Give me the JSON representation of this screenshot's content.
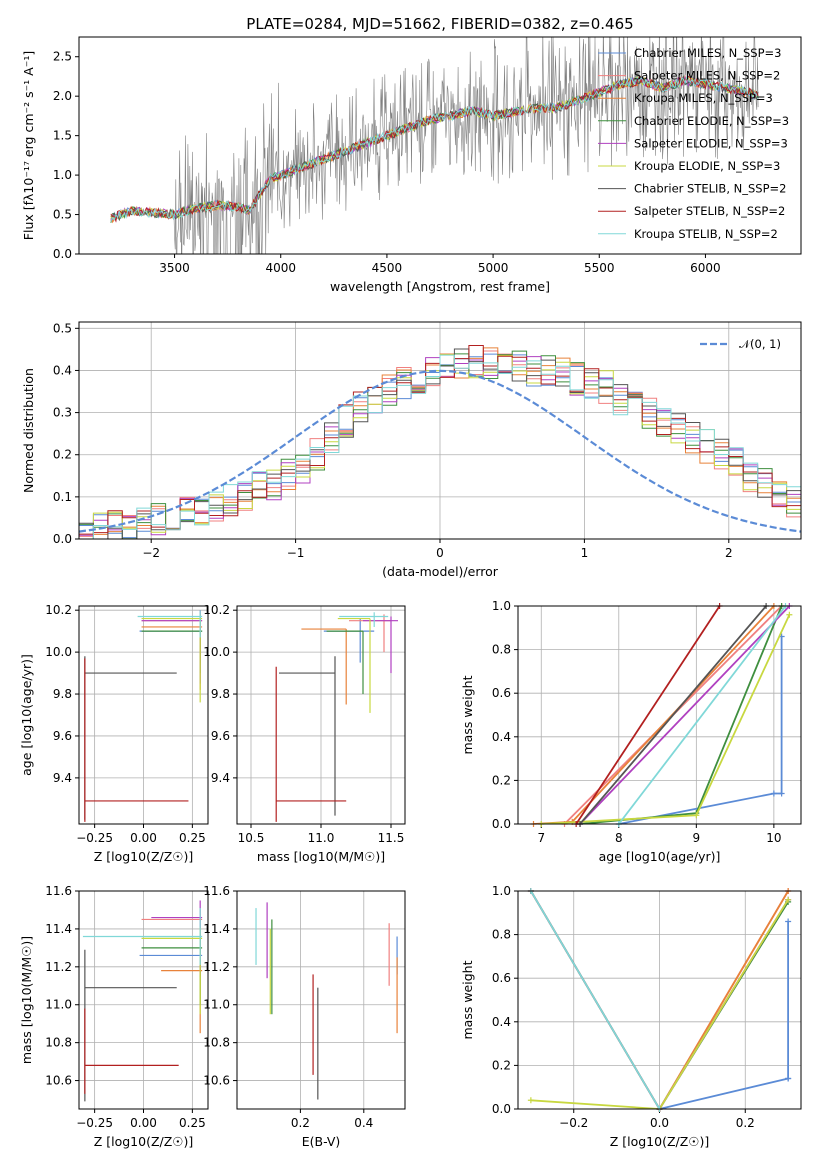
{
  "colors": {
    "chabrier_miles": "#5b8bd6",
    "salpeter_miles": "#f08080",
    "kroupa_miles": "#e8823a",
    "chabrier_elodie": "#3f8f3f",
    "salpeter_elodie": "#b040c0",
    "kroupa_elodie": "#c8d840",
    "chabrier_stelib": "#555555",
    "salpeter_stelib": "#b22020",
    "kroupa_stelib": "#80d8d8",
    "data": "#808080",
    "gauss": "#5b8bd6"
  },
  "chart_data": [
    {
      "id": "spectrum",
      "type": "line",
      "title": "PLATE=0284, MJD=51662, FIBERID=0382, z=0.465",
      "xlabel": "wavelength [Angstrom, rest frame]",
      "ylabel": "Flux [fλ10⁻¹⁷ erg cm⁻² s⁻¹ A⁻¹]",
      "xlim": [
        3050,
        6450
      ],
      "ylim": [
        0,
        2.75
      ],
      "xticks": [
        3500,
        4000,
        4500,
        5000,
        5500,
        6000
      ],
      "yticks": [
        0.0,
        0.5,
        1.0,
        1.5,
        2.0,
        2.5
      ],
      "legend_position": "top-right",
      "series": [
        {
          "name": "Chabrier MILES, N_SSP=3",
          "color_key": "chabrier_miles"
        },
        {
          "name": "Salpeter MILES, N_SSP=2",
          "color_key": "salpeter_miles"
        },
        {
          "name": "Kroupa MILES, N_SSP=3",
          "color_key": "kroupa_miles"
        },
        {
          "name": "Chabrier ELODIE, N_SSP=3",
          "color_key": "chabrier_elodie"
        },
        {
          "name": "Salpeter ELODIE, N_SSP=3",
          "color_key": "salpeter_elodie"
        },
        {
          "name": "Kroupa ELODIE, N_SSP=3",
          "color_key": "kroupa_elodie"
        },
        {
          "name": "Chabrier STELIB, N_SSP=2",
          "color_key": "chabrier_stelib"
        },
        {
          "name": "Salpeter STELIB, N_SSP=2",
          "color_key": "salpeter_stelib"
        },
        {
          "name": "Kroupa STELIB, N_SSP=2",
          "color_key": "kroupa_stelib"
        }
      ],
      "model_continuum": {
        "x": [
          3200,
          3300,
          3400,
          3500,
          3600,
          3700,
          3800,
          3850,
          3950,
          4000,
          4100,
          4200,
          4300,
          4400,
          4500,
          4600,
          4700,
          4800,
          4900,
          5000,
          5100,
          5200,
          5300,
          5400,
          5500,
          5600,
          5700,
          5800,
          5900,
          6000,
          6100,
          6200,
          6250
        ],
        "y": [
          0.45,
          0.55,
          0.52,
          0.5,
          0.58,
          0.62,
          0.6,
          0.55,
          0.95,
          1.0,
          1.1,
          1.2,
          1.3,
          1.4,
          1.5,
          1.6,
          1.7,
          1.75,
          1.82,
          1.75,
          1.8,
          1.85,
          1.85,
          1.95,
          2.05,
          2.15,
          2.2,
          2.1,
          2.2,
          2.15,
          2.1,
          2.05,
          2.0
        ]
      }
    },
    {
      "id": "residuals",
      "type": "histogram",
      "xlabel": "(data-model)/error",
      "ylabel": "Normed distribution",
      "xlim": [
        -2.5,
        2.5
      ],
      "ylim": [
        0,
        0.515
      ],
      "xticks": [
        -2,
        -1,
        0,
        1,
        2
      ],
      "yticks": [
        0.0,
        0.1,
        0.2,
        0.3,
        0.4,
        0.5
      ],
      "legend": "𝒩(0, 1)",
      "legend_position": "top-right",
      "bin_width": 0.1,
      "bin_start": -2.5,
      "base_values": [
        0.02,
        0.025,
        0.03,
        0.035,
        0.04,
        0.045,
        0.05,
        0.06,
        0.07,
        0.08,
        0.09,
        0.1,
        0.12,
        0.13,
        0.15,
        0.16,
        0.2,
        0.24,
        0.28,
        0.31,
        0.33,
        0.35,
        0.37,
        0.38,
        0.4,
        0.41,
        0.42,
        0.42,
        0.42,
        0.41,
        0.41,
        0.4,
        0.4,
        0.39,
        0.38,
        0.37,
        0.36,
        0.33,
        0.32,
        0.3,
        0.28,
        0.26,
        0.24,
        0.22,
        0.2,
        0.18,
        0.15,
        0.13,
        0.1,
        0.09
      ]
    },
    {
      "id": "age_vs_Z",
      "type": "scatter",
      "xlabel": "Z [log10(Z/Z☉)]",
      "ylabel": "age  [log10(age/yr)]",
      "xlim": [
        -0.33,
        0.33
      ],
      "ylim": [
        9.18,
        10.22
      ],
      "xticks": [
        -0.25,
        0.0,
        0.25
      ],
      "xtick_labels": [
        "−0.25",
        "0.00",
        "0.25"
      ],
      "yticks": [
        9.4,
        9.6,
        9.8,
        10.0,
        10.2
      ],
      "series": [
        {
          "color_key": "chabrier_miles",
          "x": 0.29,
          "y": 10.1,
          "xerr": [
            0.31,
            0.01
          ],
          "yerr": [
            0.15,
            0.1
          ]
        },
        {
          "color_key": "salpeter_miles",
          "x": 0.29,
          "y": 10.15,
          "xerr": [
            0.3,
            0.01
          ],
          "yerr": [
            0.2,
            0.05
          ]
        },
        {
          "color_key": "kroupa_miles",
          "x": 0.29,
          "y": 10.12,
          "xerr": [
            0.3,
            0.01
          ],
          "yerr": [
            0.3,
            0.05
          ]
        },
        {
          "color_key": "chabrier_elodie",
          "x": 0.29,
          "y": 10.1,
          "xerr": [
            0.3,
            0.01
          ],
          "yerr": [
            0.2,
            0.08
          ]
        },
        {
          "color_key": "salpeter_elodie",
          "x": 0.29,
          "y": 10.15,
          "xerr": [
            0.3,
            0.01
          ],
          "yerr": [
            0.3,
            0.05
          ]
        },
        {
          "color_key": "kroupa_elodie",
          "x": 0.29,
          "y": 10.16,
          "xerr": [
            0.3,
            0.01
          ],
          "yerr": [
            0.4,
            0.02
          ]
        },
        {
          "color_key": "chabrier_stelib",
          "x": -0.3,
          "y": 9.9,
          "xerr": [
            0.0,
            0.47
          ],
          "yerr": [
            0.7,
            0.08
          ]
        },
        {
          "color_key": "salpeter_stelib",
          "x": -0.3,
          "y": 9.29,
          "xerr": [
            0.0,
            0.53
          ],
          "yerr": [
            0.1,
            0.68
          ]
        },
        {
          "color_key": "kroupa_stelib",
          "x": 0.29,
          "y": 10.17,
          "xerr": [
            0.32,
            0.01
          ],
          "yerr": [
            0.1,
            0.03
          ]
        }
      ]
    },
    {
      "id": "age_vs_mass",
      "type": "scatter",
      "xlabel": "mass [log10(M/M☉)]",
      "ylabel": "",
      "xlim": [
        10.4,
        11.6
      ],
      "ylim": [
        9.18,
        10.22
      ],
      "xticks": [
        10.5,
        11.0,
        11.5
      ],
      "xtick_labels": [
        "10.5",
        "11.0",
        "11.5"
      ],
      "yticks": [
        9.4,
        9.6,
        9.8,
        10.0,
        10.2
      ],
      "series": [
        {
          "color_key": "chabrier_miles",
          "x": 11.28,
          "y": 10.1,
          "xerr": [
            0.26,
            0.1
          ],
          "yerr": [
            0.15,
            0.06
          ]
        },
        {
          "color_key": "salpeter_miles",
          "x": 11.45,
          "y": 10.15,
          "xerr": [
            0.25,
            0.05
          ],
          "yerr": [
            0.15,
            0.03
          ]
        },
        {
          "color_key": "kroupa_miles",
          "x": 11.18,
          "y": 10.11,
          "xerr": [
            0.32,
            0.0
          ],
          "yerr": [
            0.36,
            0.0
          ]
        },
        {
          "color_key": "chabrier_elodie",
          "x": 11.3,
          "y": 10.1,
          "xerr": [
            0.26,
            0.0
          ],
          "yerr": [
            0.3,
            0.0
          ]
        },
        {
          "color_key": "salpeter_elodie",
          "x": 11.5,
          "y": 10.15,
          "xerr": [
            0.2,
            0.05
          ],
          "yerr": [
            0.25,
            0.02
          ]
        },
        {
          "color_key": "kroupa_elodie",
          "x": 11.35,
          "y": 10.16,
          "xerr": [
            0.23,
            0.0
          ],
          "yerr": [
            0.45,
            0.0
          ]
        },
        {
          "color_key": "chabrier_stelib",
          "x": 11.1,
          "y": 9.9,
          "xerr": [
            0.4,
            0.0
          ],
          "yerr": [
            0.68,
            0.08
          ]
        },
        {
          "color_key": "salpeter_stelib",
          "x": 10.68,
          "y": 9.29,
          "xerr": [
            0.0,
            0.5
          ],
          "yerr": [
            0.1,
            0.64
          ]
        },
        {
          "color_key": "kroupa_stelib",
          "x": 11.38,
          "y": 10.17,
          "xerr": [
            0.25,
            0.1
          ],
          "yerr": [
            0.05,
            0.02
          ]
        }
      ]
    },
    {
      "id": "weight_vs_age",
      "type": "line",
      "xlabel": "age  [log10(age/yr)]",
      "ylabel": "mass weight",
      "xlim": [
        6.7,
        10.35
      ],
      "ylim": [
        0,
        1
      ],
      "xticks": [
        7,
        8,
        9,
        10
      ],
      "yticks": [
        0.0,
        0.2,
        0.4,
        0.6,
        0.8,
        1.0
      ],
      "series": [
        {
          "color_key": "chabrier_miles",
          "x": [
            8.0,
            10.0,
            10.1,
            10.1
          ],
          "y": [
            0.0,
            0.14,
            0.14,
            0.86
          ]
        },
        {
          "color_key": "salpeter_miles",
          "x": [
            7.3,
            10.1
          ],
          "y": [
            0.0,
            1.0
          ]
        },
        {
          "color_key": "kroupa_miles",
          "x": [
            6.9,
            7.4,
            10.0
          ],
          "y": [
            0.0,
            0.01,
            1.0
          ]
        },
        {
          "color_key": "chabrier_elodie",
          "x": [
            7.5,
            9.0,
            10.1
          ],
          "y": [
            0.0,
            0.05,
            1.0
          ]
        },
        {
          "color_key": "salpeter_elodie",
          "x": [
            7.5,
            10.2
          ],
          "y": [
            0.0,
            1.0
          ]
        },
        {
          "color_key": "kroupa_elodie",
          "x": [
            7.0,
            9.0,
            10.2
          ],
          "y": [
            0.0,
            0.04,
            0.96
          ]
        },
        {
          "color_key": "chabrier_stelib",
          "x": [
            7.5,
            9.9
          ],
          "y": [
            0.0,
            1.0
          ]
        },
        {
          "color_key": "salpeter_stelib",
          "x": [
            7.45,
            9.3
          ],
          "y": [
            0.0,
            1.0
          ]
        },
        {
          "color_key": "kroupa_stelib",
          "x": [
            8.0,
            10.15
          ],
          "y": [
            0.0,
            1.0
          ]
        }
      ]
    },
    {
      "id": "mass_vs_Z",
      "type": "scatter",
      "xlabel": "Z [log10(Z/Z☉)]",
      "ylabel": "mass [log10(M/M☉)]",
      "xlim": [
        -0.33,
        0.33
      ],
      "ylim": [
        10.45,
        11.6
      ],
      "xticks": [
        -0.25,
        0.0,
        0.25
      ],
      "xtick_labels": [
        "−0.25",
        "0.00",
        "0.25"
      ],
      "yticks": [
        10.6,
        10.8,
        11.0,
        11.2,
        11.4,
        11.6
      ],
      "series": [
        {
          "color_key": "chabrier_miles",
          "x": 0.29,
          "y": 11.26,
          "xerr": [
            0.31,
            0.01
          ],
          "yerr": [
            0.1,
            0.1
          ]
        },
        {
          "color_key": "salpeter_miles",
          "x": 0.29,
          "y": 11.45,
          "xerr": [
            0.3,
            0.01
          ],
          "yerr": [
            0.3,
            0.05
          ]
        },
        {
          "color_key": "kroupa_miles",
          "x": 0.29,
          "y": 11.18,
          "xerr": [
            0.2,
            0.01
          ],
          "yerr": [
            0.33,
            0.02
          ]
        },
        {
          "color_key": "chabrier_elodie",
          "x": 0.29,
          "y": 11.3,
          "xerr": [
            0.3,
            0.01
          ],
          "yerr": [
            0.3,
            0.08
          ]
        },
        {
          "color_key": "salpeter_elodie",
          "x": 0.29,
          "y": 11.46,
          "xerr": [
            0.25,
            0.01
          ],
          "yerr": [
            0.3,
            0.09
          ]
        },
        {
          "color_key": "kroupa_elodie",
          "x": 0.29,
          "y": 11.35,
          "xerr": [
            0.3,
            0.01
          ],
          "yerr": [
            0.4,
            0.06
          ]
        },
        {
          "color_key": "chabrier_stelib",
          "x": -0.3,
          "y": 11.09,
          "xerr": [
            0.0,
            0.47
          ],
          "yerr": [
            0.6,
            0.2
          ]
        },
        {
          "color_key": "salpeter_stelib",
          "x": -0.3,
          "y": 10.68,
          "xerr": [
            0.0,
            0.48
          ],
          "yerr": [
            0.15,
            0.3
          ]
        },
        {
          "color_key": "kroupa_stelib",
          "x": 0.29,
          "y": 11.36,
          "xerr": [
            0.6,
            0.01
          ],
          "yerr": [
            0.15,
            0.15
          ]
        }
      ]
    },
    {
      "id": "mass_vs_ebv",
      "type": "scatter",
      "xlabel": "E(B-V)",
      "ylabel": "",
      "xlim": [
        0.0,
        0.53
      ],
      "ylim": [
        10.45,
        11.6
      ],
      "xticks": [
        0.2,
        0.4
      ],
      "xtick_labels": [
        "0.2",
        "0.4"
      ],
      "yticks": [
        10.6,
        10.8,
        11.0,
        11.2,
        11.4,
        11.6
      ],
      "series": [
        {
          "color_key": "chabrier_miles",
          "x": 0.505,
          "y": 11.26,
          "yerr": [
            0.1,
            0.1
          ]
        },
        {
          "color_key": "salpeter_miles",
          "x": 0.48,
          "y": 11.3,
          "yerr": [
            0.2,
            0.13
          ]
        },
        {
          "color_key": "kroupa_miles",
          "x": 0.505,
          "y": 11.18,
          "yerr": [
            0.33,
            0.07
          ]
        },
        {
          "color_key": "chabrier_elodie",
          "x": 0.11,
          "y": 11.2,
          "yerr": [
            0.25,
            0.25
          ]
        },
        {
          "color_key": "salpeter_elodie",
          "x": 0.095,
          "y": 11.34,
          "yerr": [
            0.2,
            0.2
          ]
        },
        {
          "color_key": "kroupa_elodie",
          "x": 0.105,
          "y": 11.2,
          "yerr": [
            0.25,
            0.2
          ]
        },
        {
          "color_key": "chabrier_stelib",
          "x": 0.255,
          "y": 10.8,
          "yerr": [
            0.3,
            0.29
          ]
        },
        {
          "color_key": "salpeter_stelib",
          "x": 0.24,
          "y": 10.9,
          "yerr": [
            0.27,
            0.26
          ]
        },
        {
          "color_key": "kroupa_stelib",
          "x": 0.06,
          "y": 11.36,
          "yerr": [
            0.15,
            0.15
          ]
        }
      ]
    },
    {
      "id": "weight_vs_Z",
      "type": "line",
      "xlabel": "Z [log10(Z/Z☉)]",
      "ylabel": "mass weight",
      "xlim": [
        -0.33,
        0.33
      ],
      "ylim": [
        0,
        1
      ],
      "xticks": [
        -0.2,
        0.0,
        0.2
      ],
      "xtick_labels": [
        "−0.2",
        "0.0",
        "0.2"
      ],
      "yticks": [
        0.0,
        0.2,
        0.4,
        0.6,
        0.8,
        1.0
      ],
      "series": [
        {
          "color_key": "chabrier_miles",
          "x": [
            0.0,
            0.3,
            0.3,
            0.3
          ],
          "y": [
            0.0,
            0.14,
            0.14,
            0.86
          ]
        },
        {
          "color_key": "salpeter_miles",
          "x": [
            0.0,
            0.3
          ],
          "y": [
            0.0,
            1.0
          ]
        },
        {
          "color_key": "kroupa_miles",
          "x": [
            0.0,
            0.3
          ],
          "y": [
            0.0,
            1.0
          ]
        },
        {
          "color_key": "chabrier_elodie",
          "x": [
            0.0,
            0.3
          ],
          "y": [
            0.0,
            0.95
          ]
        },
        {
          "color_key": "salpeter_elodie",
          "x": [
            0.0,
            0.3
          ],
          "y": [
            0.0,
            0.96
          ]
        },
        {
          "color_key": "kroupa_elodie",
          "x": [
            -0.3,
            0.0,
            0.3
          ],
          "y": [
            0.04,
            0.0,
            0.96
          ]
        },
        {
          "color_key": "chabrier_stelib",
          "x": [
            -0.3,
            0.0
          ],
          "y": [
            1.0,
            0.0
          ]
        },
        {
          "color_key": "salpeter_stelib",
          "x": [
            -0.3,
            0.0
          ],
          "y": [
            1.0,
            0.0
          ]
        },
        {
          "color_key": "kroupa_stelib",
          "x": [
            -0.3,
            0.0
          ],
          "y": [
            1.0,
            0.0
          ]
        }
      ]
    }
  ]
}
